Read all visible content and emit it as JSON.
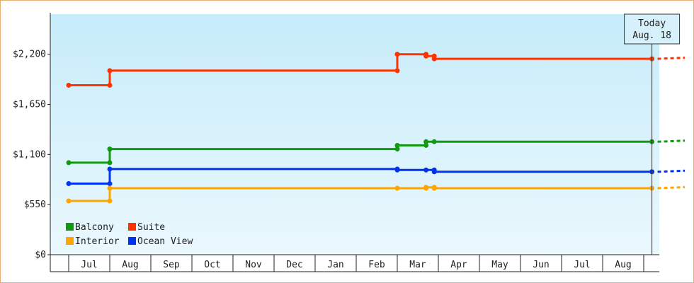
{
  "chart_data": {
    "type": "line",
    "step": true,
    "title": "",
    "xlabel": "",
    "ylabel": "",
    "ylim": [
      0,
      2640
    ],
    "y_ticks": [
      0,
      550,
      1100,
      1650,
      2200
    ],
    "y_tick_labels": [
      "$0",
      "$550",
      "$1,100",
      "$1,650",
      "$2,200"
    ],
    "x_categories": [
      "Jul",
      "Aug",
      "Sep",
      "Oct",
      "Nov",
      "Dec",
      "Jan",
      "Feb",
      "Mar",
      "Apr",
      "May",
      "Jun",
      "Jul",
      "Aug"
    ],
    "grid": false,
    "background": "sky-blue gradient",
    "legend_position": "bottom-left",
    "today_marker": {
      "line1": "Today",
      "line2": "Aug. 18",
      "x": 13.7
    },
    "series": [
      {
        "name": "Suite",
        "color": "#ff3300",
        "points": [
          [
            -0.5,
            1860
          ],
          [
            0.5,
            1860
          ],
          [
            0.5,
            2020
          ],
          [
            7.5,
            2020
          ],
          [
            7.5,
            2200
          ],
          [
            8.2,
            2200
          ],
          [
            8.2,
            2180
          ],
          [
            8.4,
            2180
          ],
          [
            8.4,
            2150
          ],
          [
            13.7,
            2150
          ]
        ],
        "projected_end": 14.5
      },
      {
        "name": "Balcony",
        "color": "#119911",
        "points": [
          [
            -0.5,
            1010
          ],
          [
            0.5,
            1010
          ],
          [
            0.5,
            1160
          ],
          [
            7.5,
            1160
          ],
          [
            7.5,
            1200
          ],
          [
            8.2,
            1200
          ],
          [
            8.2,
            1240
          ],
          [
            8.4,
            1240
          ],
          [
            8.4,
            1240
          ],
          [
            13.7,
            1240
          ]
        ],
        "projected_end": 14.5
      },
      {
        "name": "Ocean View",
        "color": "#0033ee",
        "points": [
          [
            -0.5,
            780
          ],
          [
            0.5,
            780
          ],
          [
            0.5,
            940
          ],
          [
            7.5,
            940
          ],
          [
            7.5,
            930
          ],
          [
            8.2,
            930
          ],
          [
            8.2,
            930
          ],
          [
            8.4,
            930
          ],
          [
            8.4,
            910
          ],
          [
            13.7,
            910
          ]
        ],
        "projected_end": 14.5
      },
      {
        "name": "Interior",
        "color": "#ffa500",
        "points": [
          [
            -0.5,
            590
          ],
          [
            0.5,
            590
          ],
          [
            0.5,
            730
          ],
          [
            7.5,
            730
          ],
          [
            7.5,
            730
          ],
          [
            8.2,
            730
          ],
          [
            8.2,
            740
          ],
          [
            8.4,
            740
          ],
          [
            8.4,
            730
          ],
          [
            13.7,
            730
          ]
        ],
        "projected_end": 14.5
      }
    ],
    "legend": [
      {
        "name": "Balcony",
        "color": "#119911"
      },
      {
        "name": "Suite",
        "color": "#ff3300"
      },
      {
        "name": "Interior",
        "color": "#ffa500"
      },
      {
        "name": "Ocean View",
        "color": "#0033ee"
      }
    ]
  }
}
